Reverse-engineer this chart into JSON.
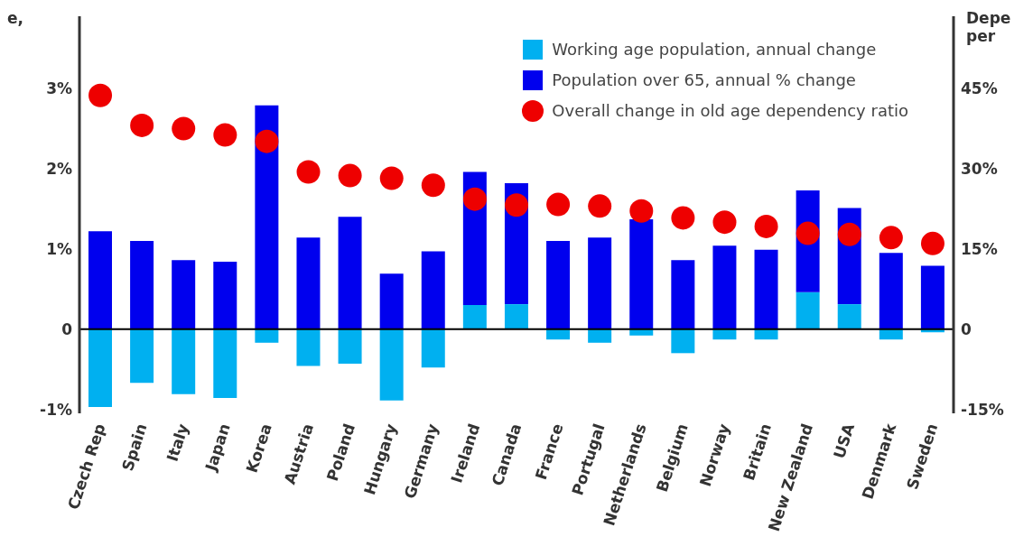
{
  "chart_data": {
    "type": "bar",
    "ylabel": "e,",
    "y2label": "Depe per",
    "categories": [
      "Czech Rep",
      "Spain",
      "Italy",
      "Japan",
      "Korea",
      "Austria",
      "Poland",
      "Hungary",
      "Germany",
      "Ireland",
      "Canada",
      "France",
      "Portugal",
      "Netherlands",
      "Belgium",
      "Norway",
      "Britain",
      "New Zealand",
      "USA",
      "Denmark",
      "Sweden"
    ],
    "series": [
      {
        "name": "Working age population, annual change",
        "color": "#00b0f0",
        "values": [
          -0.97,
          -0.67,
          -0.81,
          -0.86,
          -0.17,
          -0.46,
          -0.43,
          -0.89,
          -0.48,
          0.3,
          0.31,
          -0.13,
          -0.17,
          -0.08,
          -0.3,
          -0.13,
          -0.13,
          0.46,
          0.31,
          -0.13,
          -0.04
        ]
      },
      {
        "name": "Population over 65, annual % change",
        "color": "#0000ee",
        "values": [
          1.22,
          1.1,
          0.86,
          0.84,
          2.79,
          1.14,
          1.4,
          0.69,
          0.97,
          1.66,
          1.51,
          1.1,
          1.14,
          1.37,
          0.86,
          1.04,
          0.99,
          1.27,
          1.2,
          0.95,
          0.79
        ]
      },
      {
        "name": "Overall change in old age dependency ratio",
        "type": "scatter",
        "axis": "y2",
        "color": "#ee0000",
        "values": [
          43.7,
          38.1,
          37.5,
          36.3,
          35.1,
          29.4,
          28.7,
          28.2,
          26.9,
          24.3,
          23.2,
          23.3,
          23.0,
          22.1,
          20.8,
          20.0,
          19.2,
          17.9,
          17.7,
          17.1,
          16.0
        ]
      }
    ],
    "ylim": [
      -1.05,
      3.9
    ],
    "yticks": [
      {
        "value": -1,
        "label": "-1%"
      },
      0,
      {
        "value": 1,
        "label": "1%"
      },
      {
        "value": 2,
        "label": "2%"
      },
      {
        "value": 3,
        "label": "3%"
      }
    ],
    "y2lim": [
      -15.75,
      58.5
    ],
    "y2ticks": [
      {
        "value": -15,
        "label": "-15%"
      },
      0,
      {
        "value": 15,
        "label": "15%"
      },
      {
        "value": 30,
        "label": "30%"
      },
      {
        "value": 45,
        "label": "45%"
      }
    ],
    "ref_lines": [
      {
        "axis": "y",
        "value": 0,
        "color": "#000000"
      }
    ],
    "stacked": true,
    "legend": "top right",
    "marker": "circle",
    "grid": false
  }
}
